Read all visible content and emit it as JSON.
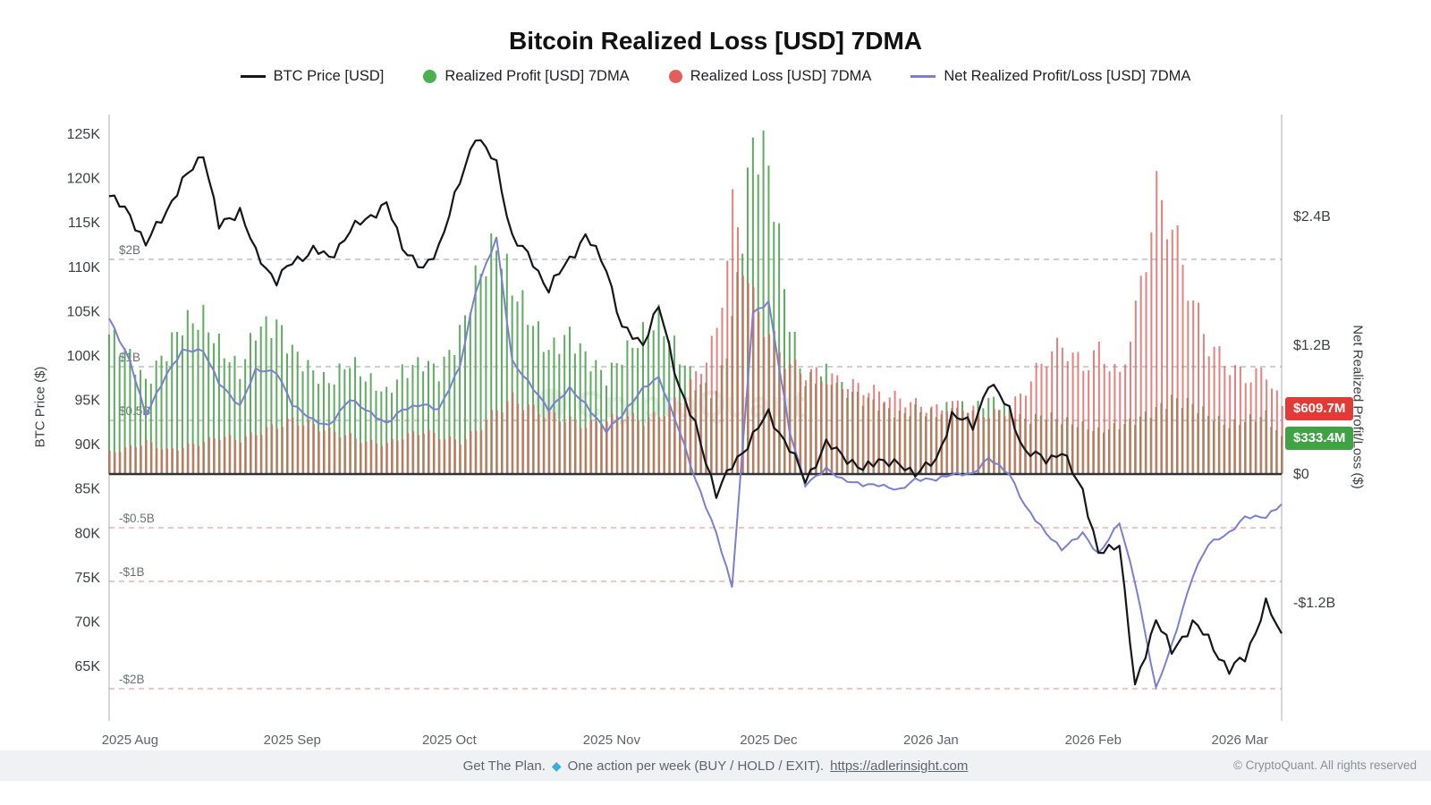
{
  "title": "Bitcoin Realized Loss [USD] 7DMA",
  "legend": [
    {
      "label": "BTC Price [USD]",
      "type": "line",
      "color": "#141619"
    },
    {
      "label": "Realized Profit [USD] 7DMA",
      "type": "dot",
      "color": "#4caf50"
    },
    {
      "label": "Realized Loss [USD] 7DMA",
      "type": "dot",
      "color": "#e35d5b"
    },
    {
      "label": "Net Realized Profit/Loss [USD] 7DMA",
      "type": "line",
      "color": "#7a7fd2"
    }
  ],
  "axes": {
    "left_title": "BTC Price ($)",
    "right_title": "Net Realized Profit/Loss ($)",
    "left_ticks": [
      {
        "label": "125K",
        "value": 125
      },
      {
        "label": "120K",
        "value": 120
      },
      {
        "label": "115K",
        "value": 115
      },
      {
        "label": "110K",
        "value": 110
      },
      {
        "label": "105K",
        "value": 105
      },
      {
        "label": "100K",
        "value": 100
      },
      {
        "label": "95K",
        "value": 95
      },
      {
        "label": "90K",
        "value": 90
      },
      {
        "label": "85K",
        "value": 85
      },
      {
        "label": "80K",
        "value": 80
      },
      {
        "label": "75K",
        "value": 75
      },
      {
        "label": "70K",
        "value": 70
      },
      {
        "label": "65K",
        "value": 65
      }
    ],
    "right_ticks": [
      {
        "label": "$2.4B",
        "value": 2.4
      },
      {
        "label": "$1.2B",
        "value": 1.2
      },
      {
        "label": "$0",
        "value": 0
      },
      {
        "label": "-$1.2B",
        "value": -1.2
      }
    ],
    "x_ticks": [
      {
        "label": "2025 Aug",
        "date": "2025-08-01"
      },
      {
        "label": "2025 Sep",
        "date": "2025-09-01"
      },
      {
        "label": "2025 Oct",
        "date": "2025-10-01"
      },
      {
        "label": "2025 Nov",
        "date": "2025-11-01"
      },
      {
        "label": "2025 Dec",
        "date": "2025-12-01"
      },
      {
        "label": "2026 Jan",
        "date": "2026-01-01"
      },
      {
        "label": "2026 Feb",
        "date": "2026-02-01"
      },
      {
        "label": "2026 Mar",
        "date": "2026-03-01"
      }
    ]
  },
  "thresholds": [
    {
      "label": "$2B",
      "value": 2,
      "color": "#9aa0a6"
    },
    {
      "label": "$1B",
      "value": 1,
      "color": "#9aa0a6"
    },
    {
      "label": "$0.5B",
      "value": 0.5,
      "color": "#9aa0a6"
    },
    {
      "label": "-$0.5B",
      "value": -0.5,
      "color": "#e28b86"
    },
    {
      "label": "-$1B",
      "value": -1,
      "color": "#e28b86"
    },
    {
      "label": "-$2B",
      "value": -2,
      "color": "#e28b86"
    }
  ],
  "badges": [
    {
      "label": "$609.7M",
      "value": 0.6097,
      "color": "#e23b37"
    },
    {
      "label": "$333.4M",
      "value": 0.3334,
      "color": "#3fa343"
    }
  ],
  "watermark": "CryptoQuant",
  "footer": {
    "cta": "Get The Plan.",
    "diamond_glyph": "◆",
    "text": "One action per week (BUY / HOLD / EXIT).",
    "link": "https://adlerinsight.com",
    "copyright": "© CryptoQuant. All rights reserved"
  },
  "chart_data": {
    "type": "mixed",
    "x": [
      "2025-07-28",
      "2025-08-01",
      "2025-08-04",
      "2025-08-08",
      "2025-08-11",
      "2025-08-15",
      "2025-08-18",
      "2025-08-22",
      "2025-08-25",
      "2025-08-29",
      "2025-09-01",
      "2025-09-05",
      "2025-09-08",
      "2025-09-12",
      "2025-09-15",
      "2025-09-19",
      "2025-09-22",
      "2025-09-26",
      "2025-09-29",
      "2025-10-03",
      "2025-10-06",
      "2025-10-10",
      "2025-10-13",
      "2025-10-17",
      "2025-10-20",
      "2025-10-24",
      "2025-10-27",
      "2025-10-31",
      "2025-11-03",
      "2025-11-07",
      "2025-11-10",
      "2025-11-14",
      "2025-11-17",
      "2025-11-21",
      "2025-11-24",
      "2025-11-28",
      "2025-12-01",
      "2025-12-05",
      "2025-12-08",
      "2025-12-12",
      "2025-12-15",
      "2025-12-19",
      "2025-12-22",
      "2025-12-26",
      "2025-12-29",
      "2026-01-02",
      "2026-01-05",
      "2026-01-09",
      "2026-01-12",
      "2026-01-16",
      "2026-01-19",
      "2026-01-23",
      "2026-01-26",
      "2026-01-30",
      "2026-02-02",
      "2026-02-06",
      "2026-02-09",
      "2026-02-13",
      "2026-02-16",
      "2026-02-20",
      "2026-02-23",
      "2026-02-27",
      "2026-03-02",
      "2026-03-06",
      "2026-03-09"
    ],
    "series": [
      {
        "name": "BTC Price [USD]",
        "type": "line",
        "axis": "left",
        "unit": "K USD",
        "color": "#141619",
        "values": [
          118.0,
          116.0,
          112.5,
          116.5,
          119.5,
          123.0,
          114.5,
          116.5,
          111.5,
          108.5,
          110.5,
          112.0,
          111.0,
          114.0,
          115.5,
          117.0,
          112.5,
          109.5,
          112.5,
          119.5,
          125.0,
          121.5,
          113.5,
          110.5,
          107.5,
          111.0,
          113.5,
          110.0,
          103.0,
          101.5,
          105.5,
          96.5,
          92.0,
          84.5,
          87.5,
          91.0,
          93.5,
          89.5,
          86.0,
          90.0,
          89.0,
          87.0,
          88.5,
          87.5,
          87.0,
          88.0,
          93.5,
          92.0,
          97.0,
          94.0,
          89.0,
          88.5,
          89.0,
          85.0,
          77.5,
          79.0,
          62.5,
          70.5,
          66.5,
          70.0,
          68.0,
          64.5,
          66.0,
          72.0,
          68.5
        ]
      },
      {
        "name": "Realized Profit [USD] 7DMA",
        "type": "bar",
        "axis": "right",
        "unit": "B USD",
        "color": "#56a656",
        "values": [
          1.3,
          1.1,
          0.85,
          1.15,
          1.4,
          1.45,
          1.2,
          0.95,
          1.35,
          1.4,
          1.15,
          0.95,
          0.85,
          1.05,
          0.9,
          0.75,
          0.95,
          1.05,
          0.95,
          1.3,
          1.8,
          2.15,
          1.75,
          1.4,
          1.15,
          1.3,
          1.1,
          0.9,
          1.1,
          1.3,
          1.45,
          1.1,
          0.85,
          0.75,
          1.4,
          3.1,
          2.9,
          1.4,
          0.85,
          0.95,
          0.8,
          0.7,
          0.65,
          0.55,
          0.6,
          0.55,
          0.65,
          0.6,
          0.7,
          0.6,
          0.5,
          0.55,
          0.5,
          0.45,
          0.4,
          0.45,
          0.5,
          0.6,
          0.7,
          0.65,
          0.55,
          0.45,
          0.5,
          0.55,
          0.33
        ]
      },
      {
        "name": "Realized Loss [USD] 7DMA",
        "type": "bar",
        "axis": "right",
        "unit": "B USD",
        "color": "#e0605c",
        "values": [
          0.2,
          0.25,
          0.3,
          0.22,
          0.25,
          0.3,
          0.35,
          0.32,
          0.38,
          0.45,
          0.5,
          0.45,
          0.4,
          0.35,
          0.3,
          0.28,
          0.35,
          0.4,
          0.35,
          0.3,
          0.4,
          0.6,
          0.7,
          0.6,
          0.55,
          0.5,
          0.45,
          0.5,
          0.55,
          0.5,
          0.55,
          0.7,
          0.9,
          1.3,
          2.45,
          1.6,
          1.3,
          1.0,
          0.95,
          0.9,
          0.85,
          0.8,
          0.75,
          0.7,
          0.65,
          0.6,
          0.65,
          0.6,
          0.55,
          0.6,
          0.8,
          1.1,
          1.2,
          1.0,
          1.15,
          0.9,
          1.5,
          2.6,
          2.3,
          1.6,
          1.2,
          1.0,
          0.9,
          0.95,
          0.61
        ]
      },
      {
        "name": "Net Realized Profit/Loss [USD] 7DMA",
        "type": "line",
        "axis": "right",
        "unit": "B USD",
        "color": "#7a7fd2",
        "values": [
          1.45,
          1.05,
          0.55,
          0.93,
          1.15,
          1.15,
          0.85,
          0.63,
          0.97,
          0.95,
          0.65,
          0.5,
          0.45,
          0.7,
          0.6,
          0.47,
          0.6,
          0.65,
          0.6,
          1.0,
          1.7,
          2.2,
          1.05,
          0.8,
          0.6,
          0.8,
          0.65,
          0.4,
          0.55,
          0.8,
          0.9,
          0.4,
          -0.05,
          -0.55,
          -1.05,
          1.5,
          1.6,
          0.4,
          -0.1,
          0.05,
          -0.05,
          -0.1,
          -0.1,
          -0.15,
          -0.05,
          -0.05,
          0.0,
          0.0,
          0.15,
          0.0,
          -0.3,
          -0.55,
          -0.7,
          -0.55,
          -0.75,
          -0.45,
          -1.0,
          -2.0,
          -1.6,
          -0.95,
          -0.65,
          -0.55,
          -0.4,
          -0.4,
          -0.28
        ]
      }
    ],
    "left_ylim": [
      58.5,
      127.5
    ],
    "right_ylim": [
      -2.3,
      3.35
    ],
    "grid": "dashed horizontal thresholds",
    "legend_position": "top"
  }
}
